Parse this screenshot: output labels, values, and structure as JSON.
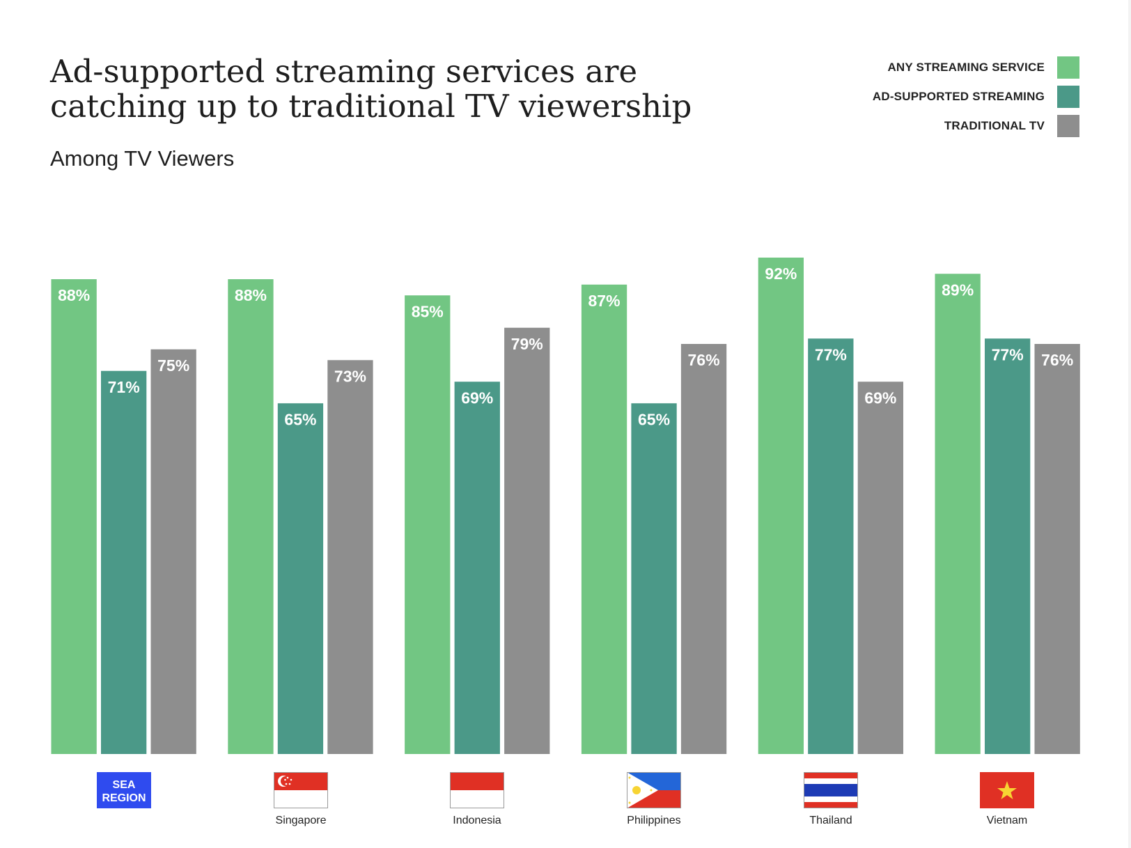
{
  "title": "Ad-supported streaming services are catching up to traditional TV viewership",
  "subtitle": "Among TV Viewers",
  "colors": {
    "any": "#72c683",
    "ad": "#4b9988",
    "tv": "#8e8e8e",
    "sea": "#2f4bef"
  },
  "chart_data": {
    "type": "bar",
    "title": "Ad-supported streaming services are catching up to traditional TV viewership",
    "subtitle": "Among TV Viewers",
    "categories": [
      "SEA REGION",
      "Singapore",
      "Indonesia",
      "Philippines",
      "Thailand",
      "Vietnam"
    ],
    "series": [
      {
        "name": "ANY STREAMING SERVICE",
        "values": [
          88,
          88,
          85,
          87,
          92,
          89
        ],
        "color": "#72c683"
      },
      {
        "name": "AD-SUPPORTED STREAMING",
        "values": [
          71,
          65,
          69,
          65,
          77,
          77
        ],
        "color": "#4b9988"
      },
      {
        "name": "TRADITIONAL TV",
        "values": [
          75,
          73,
          79,
          76,
          69,
          76
        ],
        "color": "#8e8e8e"
      }
    ],
    "ylim": [
      0,
      100
    ],
    "value_suffix": "%",
    "grid": false,
    "legend_position": "top-right"
  },
  "sea_badge": {
    "line1": "SEA",
    "line2": "REGION"
  }
}
